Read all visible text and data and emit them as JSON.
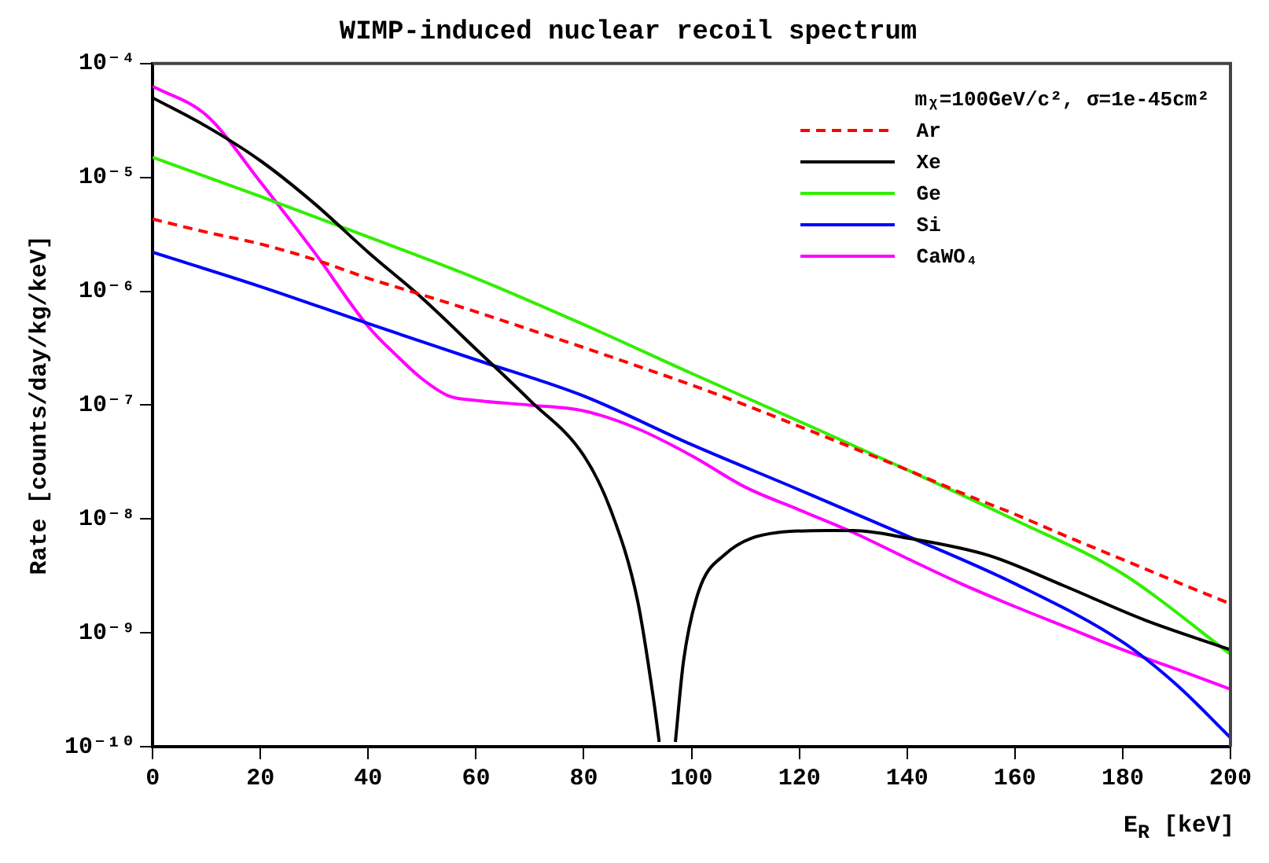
{
  "chart_data": {
    "type": "line",
    "title": "WIMP-induced nuclear recoil spectrum",
    "xlabel": "E$_{R}$ [keV]",
    "ylabel": "Rate [counts/day/kg/keV]",
    "legend_title": "mᵪ=100GeV/c², σ=1e-45cm²",
    "legend": "top right",
    "grid": false,
    "log": "y",
    "marker": "none",
    "xlim": [
      0,
      200
    ],
    "xticks": [
      0,
      20,
      40,
      60,
      80,
      100,
      120,
      140,
      160,
      180,
      200
    ],
    "ylim": [
      1e-10,
      0.0001
    ],
    "yticks": [
      {
        "value": 1e-10,
        "label": "10⁻¹⁰"
      },
      {
        "value": 1e-09,
        "label": "10⁻⁹"
      },
      {
        "value": 1e-08,
        "label": "10⁻⁸"
      },
      {
        "value": 1e-07,
        "label": "10⁻⁷"
      },
      {
        "value": 1e-06,
        "label": "10⁻⁶"
      },
      {
        "value": 1e-05,
        "label": "10⁻⁵"
      },
      {
        "value": 0.0001,
        "label": "10⁻⁴"
      }
    ],
    "series": [
      {
        "name": "Ar",
        "color": "#ff0000",
        "line_style": "dashed",
        "x": [
          0,
          10,
          20,
          30,
          40,
          50,
          60,
          70,
          80,
          90,
          100,
          110,
          120,
          130,
          140,
          150,
          160,
          170,
          180,
          190,
          200
        ],
        "values": [
          4.3e-06,
          3.3e-06,
          2.6e-06,
          1.9e-06,
          1.3e-06,
          9.3e-07,
          6.6e-07,
          4.6e-07,
          3.2e-07,
          2.2e-07,
          1.5e-07,
          1e-07,
          6.5e-08,
          4.2e-08,
          2.7e-08,
          1.7e-08,
          1.1e-08,
          6.9e-09,
          4.4e-09,
          2.8e-09,
          1.8e-09
        ]
      },
      {
        "name": "Xe",
        "color": "#000000",
        "line_style": "solid",
        "x": [
          0,
          10,
          20,
          30,
          40,
          50,
          60,
          70,
          80,
          85,
          90,
          93,
          94,
          95.5,
          97,
          98.5,
          101.3,
          106,
          116,
          125,
          130,
          140,
          155,
          169,
          184,
          200
        ],
        "values": [
          5e-05,
          2.8e-05,
          1.4e-05,
          5.9e-06,
          2.2e-06,
          8.7e-07,
          3.1e-07,
          1.1e-07,
          3.6e-08,
          1.2e-08,
          1.9e-09,
          2.5e-10,
          1.1e-10,
          null,
          1.1e-10,
          5.6e-10,
          2.3e-09,
          4.8e-09,
          7.6e-09,
          7.9e-09,
          7.9e-09,
          6.8e-09,
          4.8e-09,
          2.6e-09,
          1.3e-09,
          7.1e-10
        ]
      },
      {
        "name": "Ge",
        "color": "#33ee00",
        "line_style": "solid",
        "x": [
          0,
          20,
          40,
          60,
          80,
          100,
          120,
          140,
          160,
          180,
          200
        ],
        "values": [
          1.5e-05,
          6.8e-06,
          3e-06,
          1.3e-06,
          5.1e-07,
          1.9e-07,
          7.2e-08,
          2.7e-08,
          9.8e-09,
          3.3e-09,
          6.5e-10
        ]
      },
      {
        "name": "Si",
        "color": "#0000ff",
        "line_style": "solid",
        "x": [
          0,
          20,
          40,
          60,
          80,
          100,
          120,
          140,
          160,
          180,
          190,
          200
        ],
        "values": [
          2.2e-06,
          1.1e-06,
          5.2e-07,
          2.5e-07,
          1.2e-07,
          4.5e-08,
          1.8e-08,
          7.1e-09,
          2.7e-09,
          8.3e-10,
          3.5e-10,
          1.2e-10
        ]
      },
      {
        "name": "CaWO₄",
        "color": "#ff00ff",
        "line_style": "solid",
        "x": [
          0,
          10,
          20,
          30,
          40,
          45,
          50,
          55,
          60,
          70,
          80,
          90,
          100,
          110,
          120,
          130,
          140,
          150,
          160,
          170,
          180,
          190,
          200
        ],
        "values": [
          6.3e-05,
          3.5e-05,
          9.1e-06,
          2.2e-06,
          4.9e-07,
          2.8e-07,
          1.7e-07,
          1.2e-07,
          1.1e-07,
          1e-07,
          8.9e-08,
          6.2e-08,
          3.6e-08,
          1.9e-08,
          1.2e-08,
          7.6e-09,
          4.5e-09,
          2.7e-09,
          1.7e-09,
          1.1e-09,
          7.1e-10,
          4.8e-10,
          3.2e-10
        ]
      }
    ]
  }
}
